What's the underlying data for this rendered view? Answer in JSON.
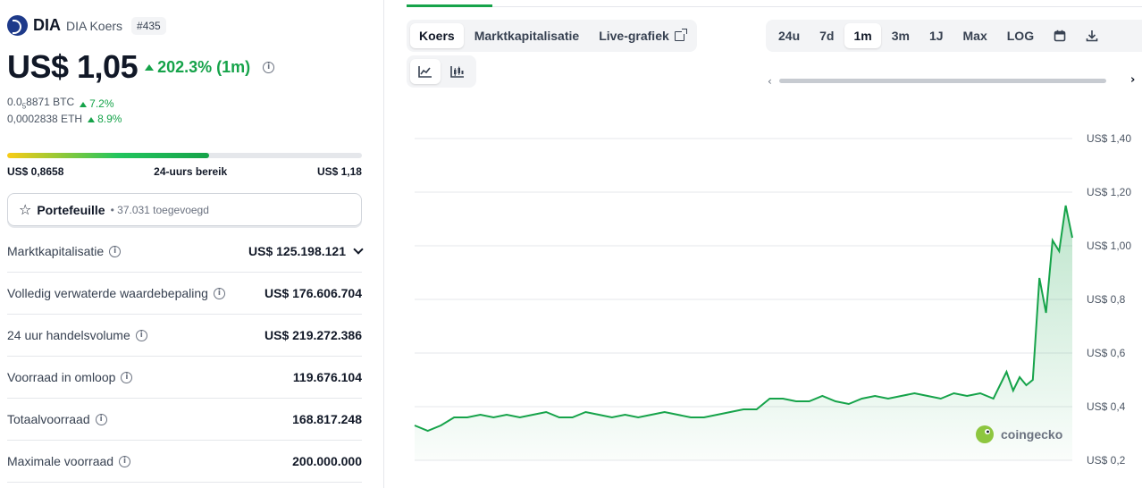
{
  "coin": {
    "symbol": "DIA",
    "name": "DIA Koers",
    "rank": "#435",
    "price": "US$ 1,05",
    "change": "202.3% (1m)",
    "btc_value_prefix": "0.0",
    "btc_value_sub": "5",
    "btc_value_rest": "8871 BTC",
    "btc_change": "7.2%",
    "eth_value": "0,0002838 ETH",
    "eth_change": "8.9%"
  },
  "range": {
    "low": "US$ 0,8658",
    "label": "24-uurs bereik",
    "high": "US$ 1,18",
    "position_percent": 57
  },
  "portfolio": {
    "label": "Portefeuille",
    "count": "37.031 toegevoegd"
  },
  "stats": [
    {
      "label": "Marktkapitalisatie",
      "value": "US$ 125.198.121"
    },
    {
      "label": "Volledig verwaterde waardebepaling",
      "value": "US$ 176.606.704"
    },
    {
      "label": "24 uur handelsvolume",
      "value": "US$ 219.272.386"
    },
    {
      "label": "Voorraad in omloop",
      "value": "119.676.104"
    },
    {
      "label": "Totaalvoorraad",
      "value": "168.817.248"
    },
    {
      "label": "Maximale voorraad",
      "value": "200.000.000"
    }
  ],
  "chart_tabs": [
    "Koers",
    "Marktkapitalisatie",
    "Live-grafiek"
  ],
  "ranges": [
    "24u",
    "7d",
    "1m",
    "3m",
    "1J",
    "Max",
    "LOG"
  ],
  "active_range": "1m",
  "chart_data": {
    "type": "area",
    "yticks": [
      "US$ 1,40",
      "US$ 1,20",
      "US$ 1,00",
      "US$ 0,8",
      "US$ 0,6",
      "US$ 0,4",
      "US$ 0,2"
    ],
    "ylim": [
      0.2,
      1.4
    ],
    "grid": true,
    "x": [
      0,
      2,
      4,
      6,
      8,
      10,
      12,
      14,
      16,
      18,
      20,
      22,
      24,
      26,
      28,
      30,
      32,
      34,
      36,
      38,
      40,
      42,
      44,
      46,
      48,
      50,
      52,
      54,
      56,
      58,
      60,
      62,
      64,
      66,
      68,
      70,
      72,
      74,
      76,
      78,
      80,
      82,
      84,
      86,
      88,
      90,
      91,
      92,
      93,
      94,
      95,
      96,
      97,
      98,
      99,
      100
    ],
    "values": [
      0.33,
      0.31,
      0.33,
      0.36,
      0.36,
      0.37,
      0.36,
      0.37,
      0.36,
      0.37,
      0.38,
      0.36,
      0.36,
      0.38,
      0.37,
      0.36,
      0.37,
      0.36,
      0.37,
      0.38,
      0.37,
      0.36,
      0.36,
      0.37,
      0.38,
      0.39,
      0.39,
      0.43,
      0.43,
      0.42,
      0.42,
      0.44,
      0.42,
      0.41,
      0.43,
      0.44,
      0.43,
      0.44,
      0.45,
      0.44,
      0.43,
      0.45,
      0.44,
      0.45,
      0.43,
      0.53,
      0.46,
      0.51,
      0.48,
      0.5,
      0.88,
      0.75,
      1.02,
      0.98,
      1.15,
      1.03
    ],
    "watermark": "coingecko",
    "line_color": "#16a34a"
  }
}
